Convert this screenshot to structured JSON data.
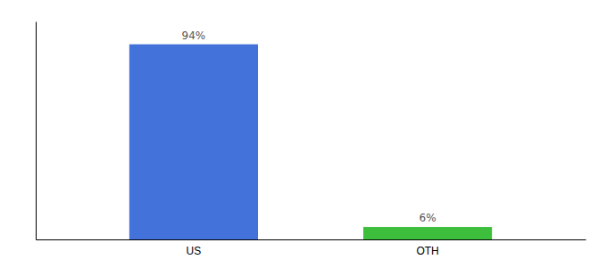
{
  "chart_data": {
    "type": "bar",
    "categories": [
      "US",
      "OTH"
    ],
    "values": [
      94,
      6
    ],
    "value_labels": [
      "94%",
      "6%"
    ],
    "data_labels": true,
    "colors": [
      "#4472db",
      "#3dbf3d"
    ],
    "ylim": [
      0,
      105
    ],
    "tick_labels": "x",
    "grid": false
  }
}
